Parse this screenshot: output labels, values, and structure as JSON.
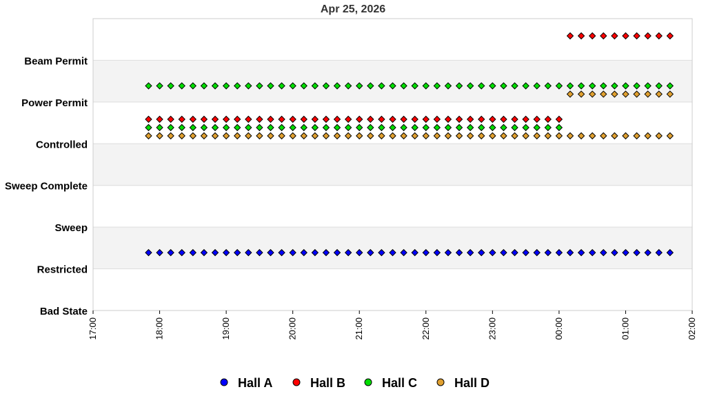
{
  "chart_data": {
    "type": "scatter",
    "title": "Apr 25, 2026",
    "xlabel": "",
    "ylabel": "",
    "x_ticks": [
      "17:00",
      "18:00",
      "19:00",
      "20:00",
      "21:00",
      "22:00",
      "23:00",
      "00:00",
      "01:00",
      "02:00"
    ],
    "xlim": [
      "17:00",
      "02:00"
    ],
    "y_categories": [
      "Bad State",
      "Restricted",
      "Sweep",
      "Sweep Complete",
      "Controlled",
      "Power Permit",
      "Beam Permit"
    ],
    "grid": "alternating horizontal bands",
    "legend": "bottom-center",
    "series": [
      {
        "name": "Hall A",
        "color": "#0000ff",
        "segments": [
          {
            "start": "17:50",
            "end": "01:40",
            "level": "Restricted"
          }
        ]
      },
      {
        "name": "Hall B",
        "color": "#ff0000",
        "segments": [
          {
            "start": "17:50",
            "end": "00:00",
            "level": "Controlled"
          },
          {
            "start": "00:10",
            "end": "01:40",
            "level": "Beam Permit"
          }
        ]
      },
      {
        "name": "Hall C",
        "color": "#00dd00",
        "segments": [
          {
            "start": "17:50",
            "end": "00:00",
            "level": "Controlled"
          },
          {
            "start": "17:50",
            "end": "01:40",
            "level": "Power Permit"
          }
        ]
      },
      {
        "name": "Hall D",
        "color": "#e0a030",
        "segments": [
          {
            "start": "17:50",
            "end": "01:40",
            "level": "Controlled"
          },
          {
            "start": "00:10",
            "end": "01:40",
            "level": "Power Permit"
          }
        ]
      }
    ],
    "sampling_interval_minutes": 10
  }
}
